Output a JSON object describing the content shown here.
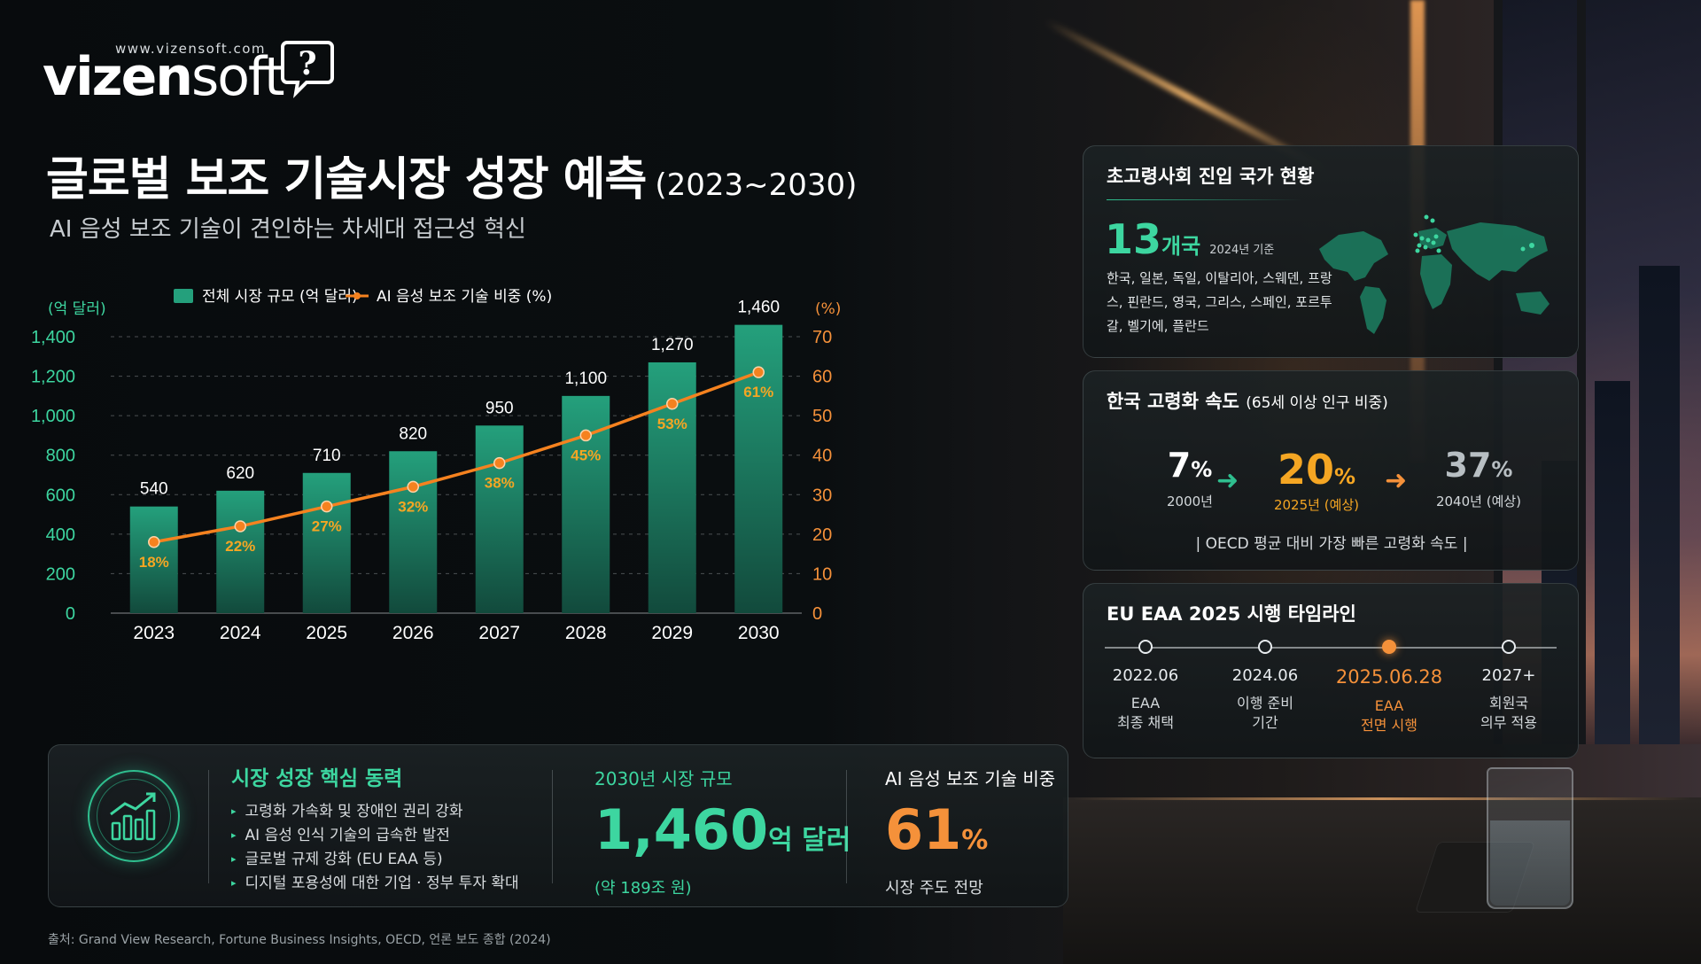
{
  "brand": {
    "url": "www.vizensoft.com",
    "name_bold": "vizen",
    "name_light": "soft",
    "mark": "?"
  },
  "header": {
    "title": "글로벌 보조 기술시장 성장 예측",
    "title_years": "(2023~2030)",
    "subtitle": "AI 음성 보조 기술이 견인하는 차세대 접근성 혁신"
  },
  "colors": {
    "bar": "#1f8a6c",
    "line": "#f5821f",
    "accent_green": "#3dd6a0",
    "accent_orange": "#f5913a"
  },
  "chart_data": {
    "type": "bar",
    "categories": [
      "2023",
      "2024",
      "2025",
      "2026",
      "2027",
      "2028",
      "2029",
      "2030"
    ],
    "series": [
      {
        "name": "전체 시장 규모 (억 달러)",
        "type": "bar",
        "axis": "left",
        "values": [
          540,
          620,
          710,
          820,
          950,
          1100,
          1270,
          1460
        ],
        "labels": [
          "540",
          "620",
          "710",
          "820",
          "950",
          "1,100",
          "1,270",
          "1,460"
        ]
      },
      {
        "name": "AI 음성 보조 기술 비중 (%)",
        "type": "line",
        "axis": "right",
        "values": [
          18,
          22,
          27,
          32,
          38,
          45,
          53,
          61
        ],
        "labels": [
          "18%",
          "22%",
          "27%",
          "32%",
          "38%",
          "45%",
          "53%",
          "61%"
        ]
      }
    ],
    "y_left": {
      "label": "(억 달러)",
      "lim": [
        0,
        1400
      ],
      "ticks": [
        0,
        200,
        400,
        600,
        800,
        1000,
        1200,
        1400
      ],
      "tick_labels": [
        "0",
        "200",
        "400",
        "600",
        "800",
        "1,000",
        "1,200",
        "1,400"
      ]
    },
    "y_right": {
      "label": "(%)",
      "lim": [
        0,
        70
      ],
      "ticks": [
        0,
        10,
        20,
        30,
        40,
        50,
        60,
        70
      ],
      "tick_labels": [
        "0",
        "10",
        "20",
        "30",
        "40",
        "50",
        "60",
        "70"
      ]
    },
    "grid": true,
    "legend": "top-left"
  },
  "drivers": {
    "title": "시장 성장 핵심 동력",
    "items": [
      "고령화 가속화 및 장애인 권리 강화",
      "AI 음성 인식 기술의 급속한 발전",
      "글로벌 규제 강화 (EU EAA 등)",
      "디지털 포용성에 대한 기업 · 정부 투자 확대"
    ],
    "market": {
      "title": "2030년 시장 규모",
      "value": "1,460",
      "unit": "억 달러",
      "note": "(약 189조 원)"
    },
    "share": {
      "title": "AI 음성 보조 기술 비중",
      "value": "61",
      "unit": "%",
      "note": "시장 주도 전망"
    }
  },
  "source": "출처: Grand View Research, Fortune Business Insights, OECD, 언론 보도 종합 (2024)",
  "super_aged": {
    "title": "초고령사회 진입 국가 현황",
    "count": "13",
    "count_unit": "개국",
    "basis": "2024년 기준",
    "countries": "한국, 일본, 독일, 이탈리아, 스웨덴, 프랑스, 핀란드, 영국, 그리스, 스페인, 포르투갈, 벨기에, 플란드"
  },
  "korea_aging": {
    "title": "한국 고령화 속도",
    "title_note": "(65세 이상 인구 비중)",
    "steps": [
      {
        "value": "7",
        "unit": "%",
        "label": "2000년",
        "color": "#ffffff"
      },
      {
        "value": "20",
        "unit": "%",
        "label": "2025년 (예상)",
        "color": "#f5a623"
      },
      {
        "value": "37",
        "unit": "%",
        "label": "2040년 (예상)",
        "color": "#b8bfc3"
      }
    ],
    "note": "|  OECD 평균 대비 가장 빠른 고령화 속도  |"
  },
  "eaa_timeline": {
    "title": "EU EAA 2025 시행 타임라인",
    "items": [
      {
        "date": "2022.06",
        "desc": "EAA\n최종 채택"
      },
      {
        "date": "2024.06",
        "desc": "이행 준비\n기간"
      },
      {
        "date": "2025.06.28",
        "desc": "EAA\n전면 시행",
        "active": true
      },
      {
        "date": "2027+",
        "desc": "회원국\n의무 적용"
      }
    ]
  }
}
